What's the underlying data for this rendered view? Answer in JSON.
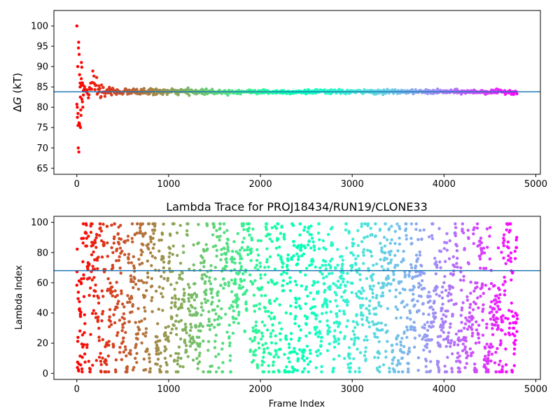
{
  "chart_data": [
    {
      "type": "scatter",
      "title": "",
      "xlabel": "",
      "ylabel": "ΔG (kT)",
      "ylabel_symbol": "ΔG",
      "ylabel_italic_part": "G",
      "ylabel_unit": "(kT)",
      "xlim": [
        -250,
        5050
      ],
      "ylim": [
        63.5,
        103.8
      ],
      "xticks": [
        0,
        1000,
        2000,
        3000,
        4000,
        5000
      ],
      "yticks": [
        65,
        70,
        75,
        80,
        85,
        90,
        95,
        100
      ],
      "hline": 83.8,
      "hline_color": "#1f77b4",
      "colormap": "rainbow",
      "n_frames": 4800,
      "initial_points": [
        [
          0,
          100
        ],
        [
          10,
          90
        ],
        [
          5,
          80
        ],
        [
          15,
          70
        ],
        [
          20,
          96
        ],
        [
          25,
          93
        ],
        [
          30,
          88
        ],
        [
          35,
          85
        ],
        [
          40,
          75
        ],
        [
          45,
          78
        ],
        [
          50,
          91
        ],
        [
          55,
          82
        ],
        [
          60,
          86
        ],
        [
          65,
          80
        ],
        [
          70,
          84
        ],
        [
          22,
          69
        ],
        [
          12,
          75.5
        ],
        [
          28,
          76
        ],
        [
          38,
          82.5
        ],
        [
          48,
          87
        ]
      ],
      "convergence_value": 83.8,
      "early_spread": 9,
      "mid_spread": 1.2,
      "late_spread": 0.25
    },
    {
      "type": "scatter",
      "title": "Lambda Trace for PROJ18434/RUN19/CLONE33",
      "xlabel": "Frame Index",
      "ylabel": "Lambda Index",
      "xlim": [
        -250,
        5050
      ],
      "ylim": [
        -4,
        104
      ],
      "xticks": [
        0,
        1000,
        2000,
        3000,
        4000,
        5000
      ],
      "yticks": [
        0,
        20,
        40,
        60,
        80,
        100
      ],
      "hline": 68,
      "hline_color": "#1f77b4",
      "colormap": "rainbow",
      "n_frames": 4800,
      "lambda_range": [
        1,
        99
      ]
    }
  ]
}
